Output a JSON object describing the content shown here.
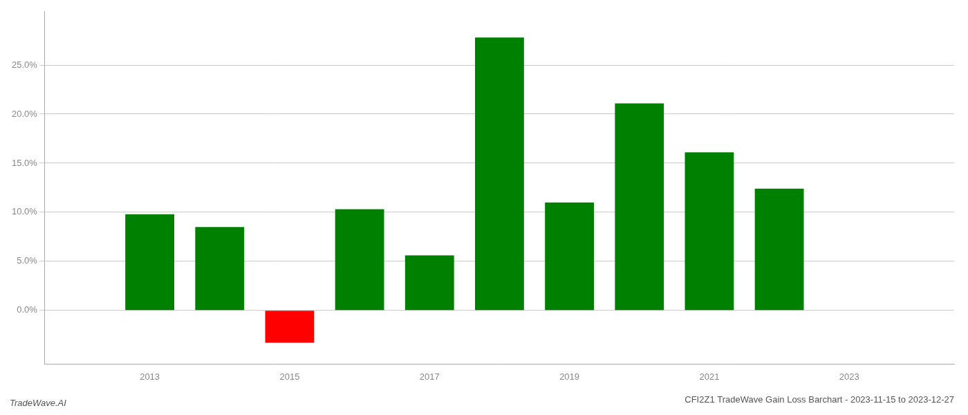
{
  "chart_data": {
    "type": "bar",
    "title": "CFI2Z1 TradeWave Gain Loss Barchart - 2023-11-15 to 2023-12-27",
    "annotations": [
      "TradeWave.AI"
    ],
    "x": [
      2013,
      2014,
      2015,
      2016,
      2017,
      2018,
      2019,
      2020,
      2021,
      2022
    ],
    "values": [
      0.098,
      0.085,
      -0.033,
      0.103,
      0.056,
      0.278,
      0.11,
      0.211,
      0.161,
      0.124
    ],
    "colors": [
      "#008000",
      "#008000",
      "#ff0000",
      "#008000",
      "#008000",
      "#008000",
      "#008000",
      "#008000",
      "#008000",
      "#008000"
    ],
    "xlim": [
      2011.5,
      2024.5
    ],
    "xticks": [
      2013,
      2015,
      2017,
      2019,
      2021,
      2023
    ],
    "ylim": [
      -0.055,
      0.305
    ],
    "yticks": [
      {
        "value": 0.0,
        "label": "0.0%"
      },
      {
        "value": 0.05,
        "label": "5.0%"
      },
      {
        "value": 0.1,
        "label": "10.0%"
      },
      {
        "value": 0.15,
        "label": "15.0%"
      },
      {
        "value": 0.2,
        "label": "20.0%"
      },
      {
        "value": 0.25,
        "label": "25.0%"
      }
    ],
    "grid": "y"
  }
}
